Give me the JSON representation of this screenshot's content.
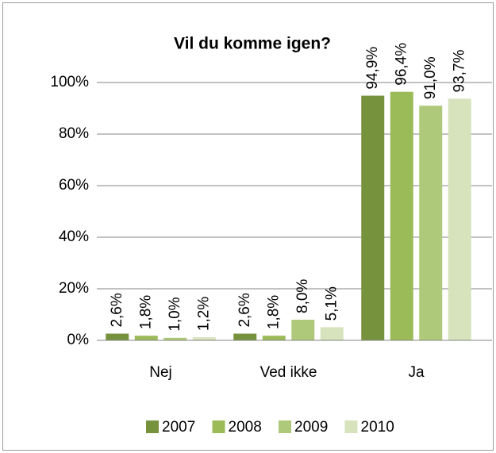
{
  "chart_data": {
    "type": "bar",
    "title": "Vil du komme igen?",
    "categories": [
      "Nej",
      "Ved ikke",
      "Ja"
    ],
    "series": [
      {
        "name": "2007",
        "color": "#76923c",
        "values": [
          2.6,
          2.6,
          94.9
        ],
        "value_labels": [
          "2,6%",
          "2,6%",
          "94,9%"
        ]
      },
      {
        "name": "2008",
        "color": "#9bbb59",
        "values": [
          1.8,
          1.8,
          96.4
        ],
        "value_labels": [
          "1,8%",
          "1,8%",
          "96,4%"
        ]
      },
      {
        "name": "2009",
        "color": "#afc97a",
        "values": [
          1.0,
          8.0,
          91.0
        ],
        "value_labels": [
          "1,0%",
          "8,0%",
          "91,0%"
        ]
      },
      {
        "name": "2010",
        "color": "#d6e3bc",
        "values": [
          1.2,
          5.1,
          93.7
        ],
        "value_labels": [
          "1,2%",
          "5,1%",
          "93,7%"
        ]
      }
    ],
    "ylim": [
      0,
      100
    ],
    "yticks": [
      {
        "value": 0,
        "label": "0%"
      },
      {
        "value": 20,
        "label": "20%"
      },
      {
        "value": 40,
        "label": "40%"
      },
      {
        "value": 60,
        "label": "60%"
      },
      {
        "value": 80,
        "label": "80%"
      },
      {
        "value": 100,
        "label": "100%"
      }
    ],
    "grid": true,
    "legend": "bottom"
  }
}
